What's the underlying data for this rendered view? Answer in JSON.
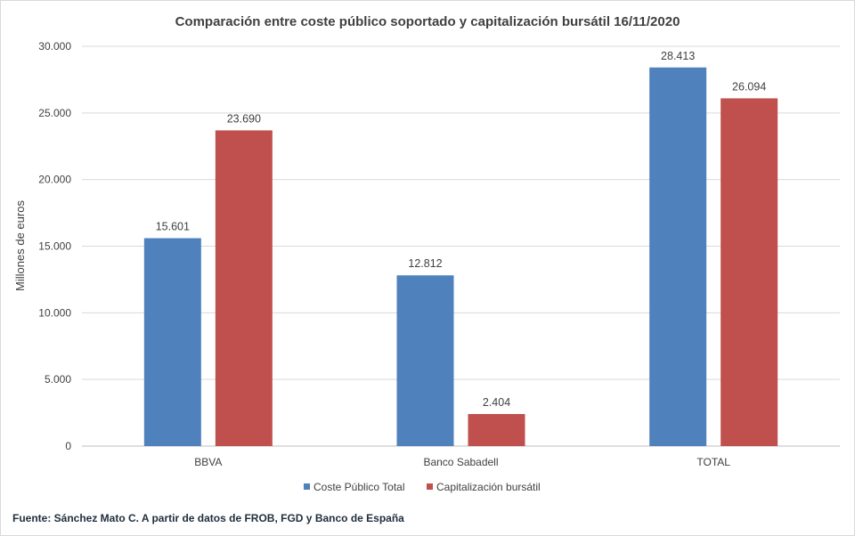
{
  "chart_data": {
    "type": "bar",
    "title": "Comparación  entre coste público soportado y capitalización bursátil 16/11/2020",
    "ylabel": "Millones de euros",
    "xlabel": "",
    "categories": [
      "BBVA",
      "Banco Sabadell",
      "TOTAL"
    ],
    "series": [
      {
        "name": "Coste Público Total",
        "color": "#4f81bd",
        "values": [
          15601,
          12812,
          28413
        ],
        "labels": [
          "15.601",
          "12.812",
          "28.413"
        ]
      },
      {
        "name": "Capitalización bursátil",
        "color": "#c0504d",
        "values": [
          23690,
          2404,
          26094
        ],
        "labels": [
          "23.690",
          "2.404",
          "26.094"
        ]
      }
    ],
    "ylim": [
      0,
      30000
    ],
    "yticks": [
      0,
      5000,
      10000,
      15000,
      20000,
      25000,
      30000
    ],
    "ytick_labels": [
      "0",
      "5.000",
      "10.000",
      "15.000",
      "20.000",
      "25.000",
      "30.000"
    ],
    "grid": true,
    "legend_position": "bottom"
  },
  "source_note": "Fuente: Sánchez Mato C.  A partir de datos de FROB, FGD y Banco de España"
}
